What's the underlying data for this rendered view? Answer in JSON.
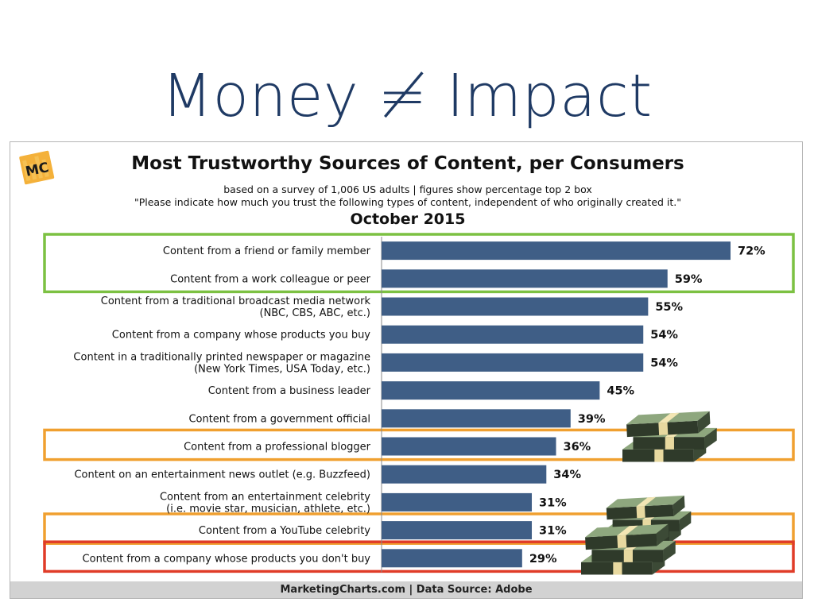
{
  "slide": {
    "title": "Money ≠ Impact"
  },
  "chart_header": {
    "logo_text": "MC",
    "title": "Most Trustworthy Sources of Content, per Consumers",
    "subtitle_line1": "based on a survey of 1,006 US adults | figures show percentage top 2 box",
    "subtitle_line2": "\"Please indicate how much you trust the following types of content, independent of who originally created it.\"",
    "date": "October 2015"
  },
  "footer": {
    "text": "MarketingCharts.com | Data Source: Adobe"
  },
  "colors": {
    "bar": "#3f5e86",
    "title": "#1f3a64",
    "highlight_green": "#7cc142",
    "highlight_orange": "#f0a030",
    "highlight_red": "#e03c28",
    "logo_bg": "#f4b13a"
  },
  "highlights": [
    {
      "color": "green",
      "rows": [
        0,
        1
      ]
    },
    {
      "color": "orange",
      "rows": [
        7
      ]
    },
    {
      "color": "orange",
      "rows": [
        10
      ]
    },
    {
      "color": "red",
      "rows": [
        11
      ]
    }
  ],
  "decorations": [
    "money-stack-icon",
    "money-stack-icon",
    "money-stack-icon"
  ],
  "chart_data": {
    "type": "bar",
    "orientation": "horizontal",
    "categories": [
      [
        "Content from a friend or family member"
      ],
      [
        "Content from a work colleague or peer"
      ],
      [
        "Content from a traditional broadcast media network",
        "(NBC, CBS, ABC, etc.)"
      ],
      [
        "Content from a company whose products you buy"
      ],
      [
        "Content in a traditionally printed newspaper or magazine",
        "(New York Times, USA Today, etc.)"
      ],
      [
        "Content from a business leader"
      ],
      [
        "Content from a government official"
      ],
      [
        "Content from a professional blogger"
      ],
      [
        "Content on an entertainment news outlet (e.g. Buzzfeed)"
      ],
      [
        "Content from an entertainment celebrity",
        "(i.e. movie star, musician, athlete, etc.)"
      ],
      [
        "Content from a YouTube celebrity"
      ],
      [
        "Content from a company whose products you don't buy"
      ]
    ],
    "values": [
      72,
      59,
      55,
      54,
      54,
      45,
      39,
      36,
      34,
      31,
      31,
      29
    ],
    "value_labels": [
      "72%",
      "59%",
      "55%",
      "54%",
      "54%",
      "45%",
      "39%",
      "36%",
      "34%",
      "31%",
      "31%",
      "29%"
    ],
    "xlim": [
      0,
      72
    ],
    "grid": false,
    "legend": "none"
  }
}
